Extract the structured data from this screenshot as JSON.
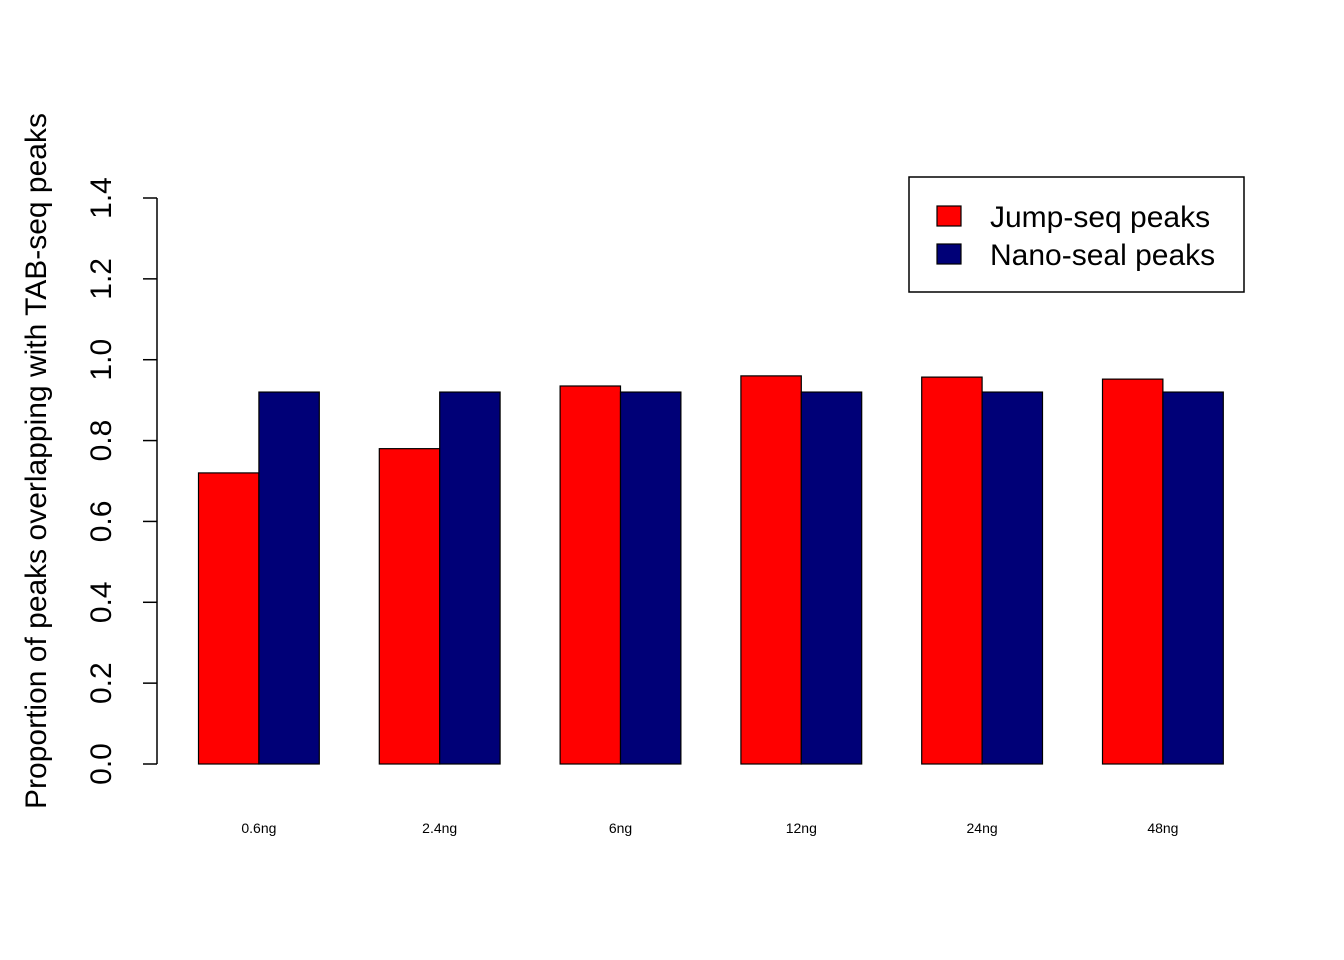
{
  "chart_data": {
    "type": "bar",
    "title": "",
    "xlabel": "",
    "ylabel": "Proportion of peaks overlapping with TAB-seq peaks",
    "categories": [
      "0.6ng",
      "2.4ng",
      "6ng",
      "12ng",
      "24ng",
      "48ng"
    ],
    "series": [
      {
        "name": "Jump-seq peaks",
        "color": "#ff0000",
        "values": [
          0.72,
          0.78,
          0.935,
          0.96,
          0.957,
          0.952
        ]
      },
      {
        "name": "Nano-seal peaks",
        "color": "#000077",
        "values": [
          0.92,
          0.92,
          0.92,
          0.92,
          0.92,
          0.92
        ]
      }
    ],
    "ylim": [
      0,
      1.4
    ],
    "yticks": [
      "0.0",
      "0.2",
      "0.4",
      "0.6",
      "0.8",
      "1.0",
      "1.2",
      "1.4"
    ],
    "grid": false,
    "legend_position": "top-right"
  }
}
